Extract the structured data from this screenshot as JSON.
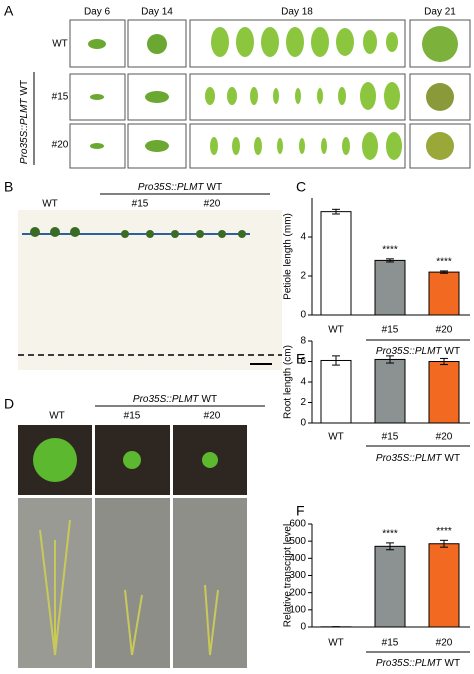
{
  "panel_a": {
    "label": "A",
    "days": [
      "Day 6",
      "Day 14",
      "Day 18",
      "Day 21"
    ],
    "rows": [
      "WT",
      "#15",
      "#20"
    ],
    "genotype": {
      "italic": "Pro35S::PLMT",
      "plain": "WT"
    }
  },
  "panel_b": {
    "label": "B",
    "wt": "WT",
    "genotype": {
      "italic": "Pro35S::PLMT",
      "plain": "WT"
    },
    "lines": [
      "#15",
      "#20"
    ]
  },
  "panel_d": {
    "label": "D",
    "wt": "WT",
    "genotype": {
      "italic": "Pro35S::PLMT",
      "plain": "WT"
    },
    "lines": [
      "#15",
      "#20"
    ]
  },
  "chart_data": [
    {
      "type": "bar",
      "panel_label": "C",
      "ylabel": "Petiole length (mm)",
      "categories": [
        "WT",
        "#15",
        "#20"
      ],
      "group_label": {
        "italic": "Pro35S::PLMT",
        "plain": "WT"
      },
      "values": [
        5.3,
        2.8,
        2.2
      ],
      "errors": [
        0.12,
        0.08,
        0.06
      ],
      "colors": [
        "#ffffff",
        "#8c9191",
        "#f26a21"
      ],
      "significance": [
        null,
        "****",
        "****"
      ],
      "ylim": [
        0,
        6
      ],
      "yticks": [
        0,
        2,
        4
      ]
    },
    {
      "type": "bar",
      "panel_label": "E",
      "ylabel": "Root length (cm)",
      "categories": [
        "WT",
        "#15",
        "#20"
      ],
      "group_label": {
        "italic": "Pro35S::PLMT",
        "plain": "WT"
      },
      "values": [
        6.1,
        6.2,
        6.0
      ],
      "errors": [
        0.45,
        0.35,
        0.3
      ],
      "colors": [
        "#ffffff",
        "#8c9191",
        "#f26a21"
      ],
      "significance": [
        null,
        null,
        null
      ],
      "ylim": [
        0,
        8
      ],
      "yticks": [
        0,
        2,
        4,
        6,
        8
      ]
    },
    {
      "type": "bar",
      "panel_label": "F",
      "ylabel": "Relative transcript level",
      "categories": [
        "WT",
        "#15",
        "#20"
      ],
      "group_label": {
        "italic": "Pro35S::PLMT",
        "plain": "WT"
      },
      "values": [
        1,
        470,
        485
      ],
      "errors": [
        1,
        20,
        20
      ],
      "colors": [
        "#ffffff",
        "#8c9191",
        "#f26a21"
      ],
      "significance": [
        null,
        "****",
        "****"
      ],
      "ylim": [
        0,
        600
      ],
      "yticks": [
        0,
        100,
        200,
        300,
        400,
        500,
        600
      ]
    }
  ]
}
